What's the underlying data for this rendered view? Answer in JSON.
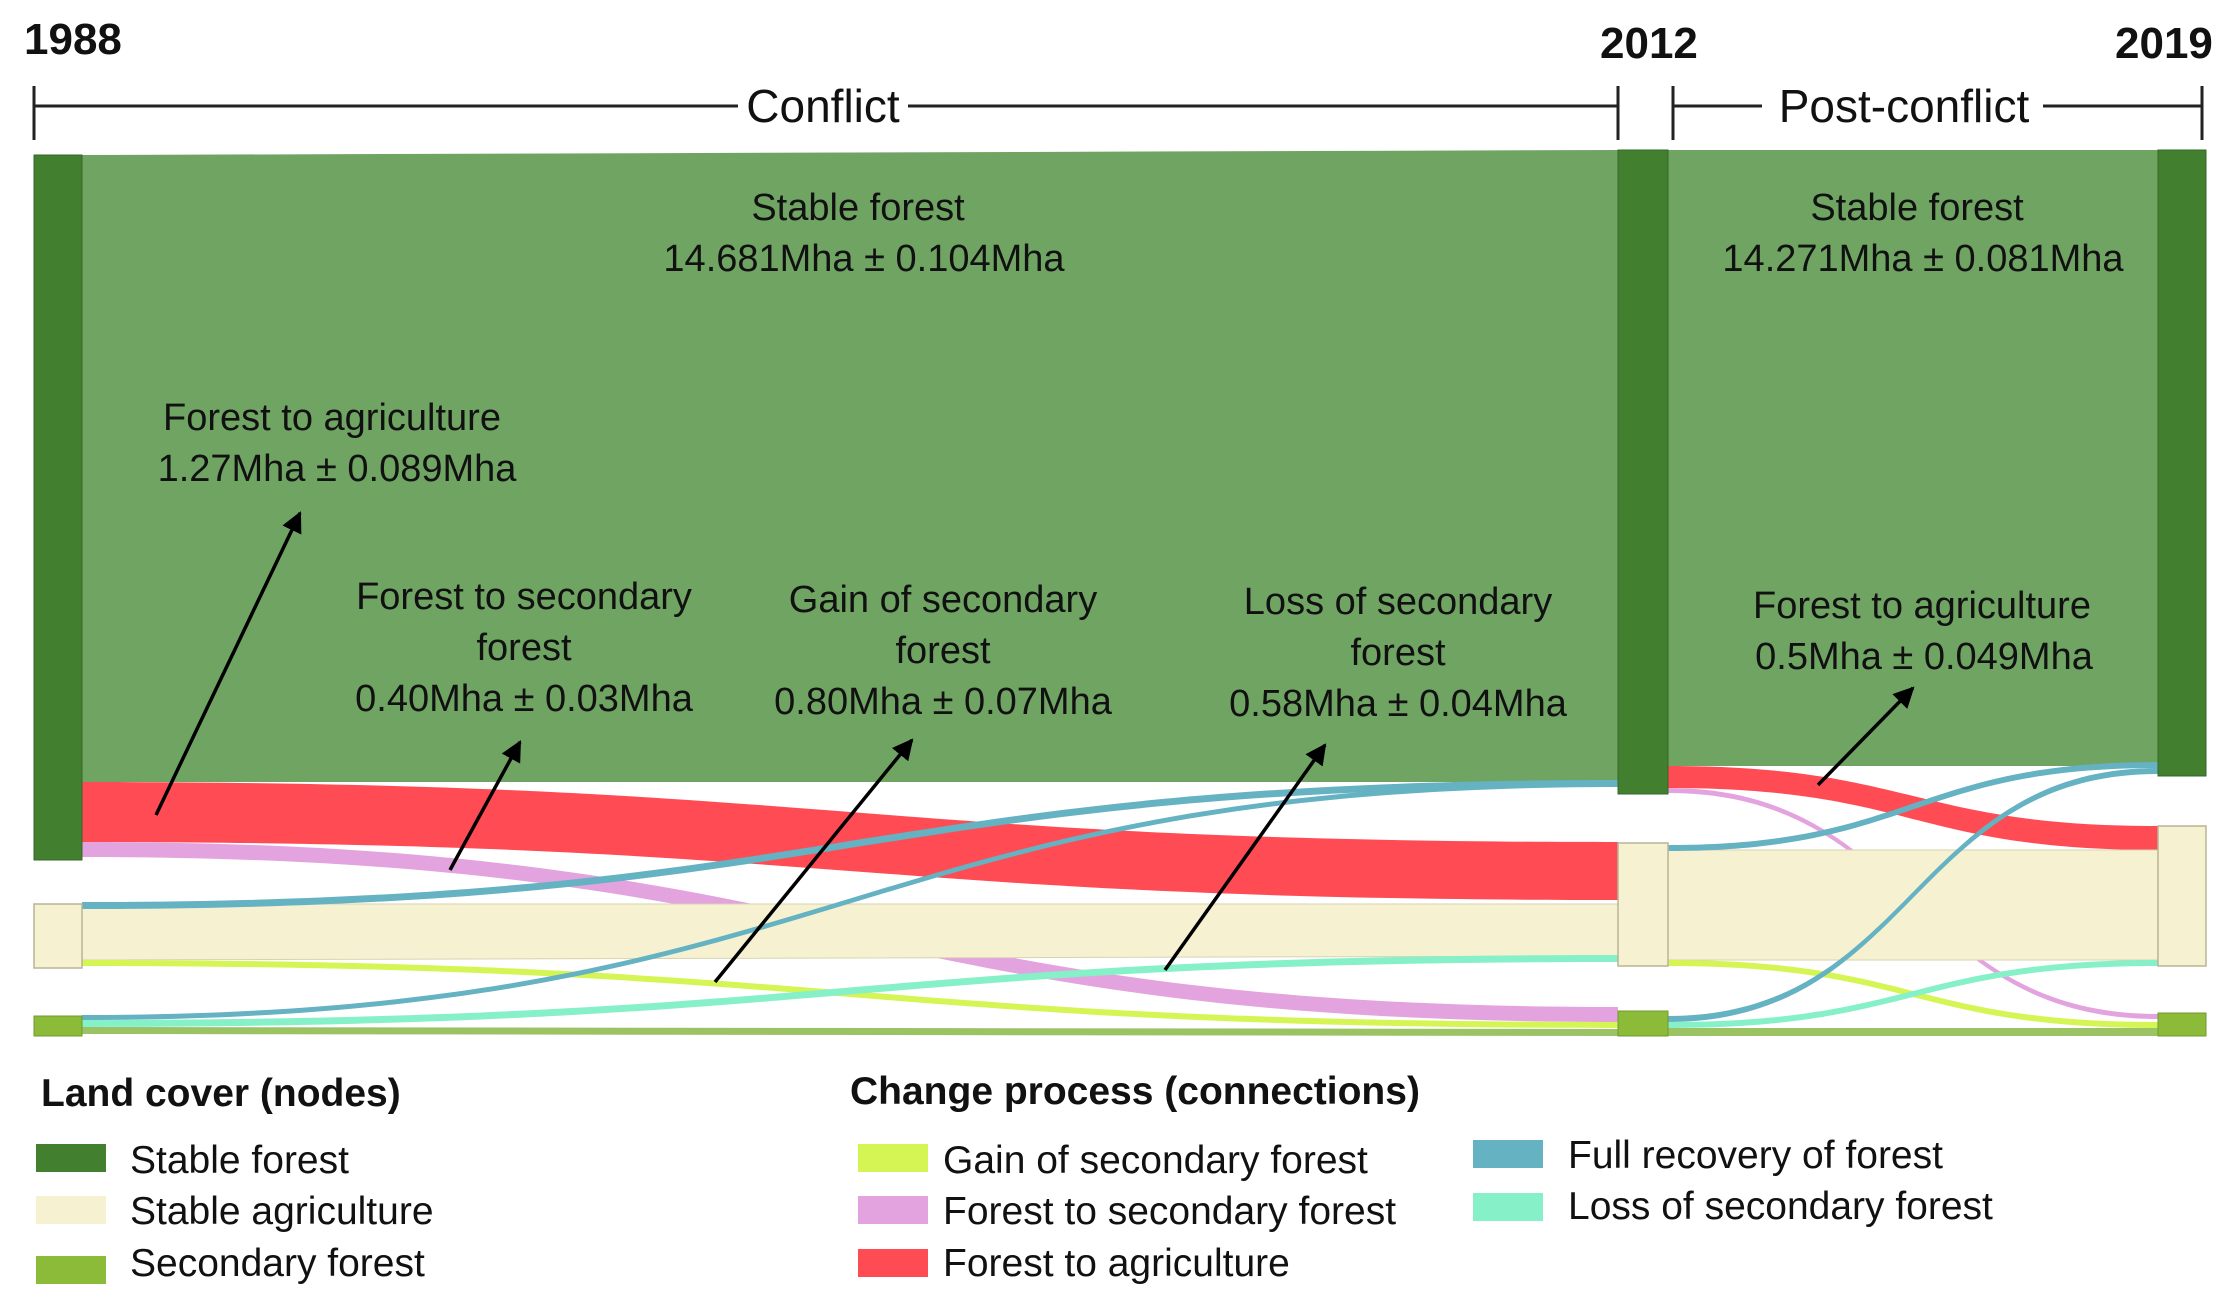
{
  "timeline": {
    "years": [
      "1988",
      "2012",
      "2019"
    ],
    "periods": [
      "Conflict",
      "Post-conflict"
    ]
  },
  "colors": {
    "stable_forest_node": "#427f2f",
    "stable_forest_flow": "#6fa463",
    "stable_agriculture": "#f6f1d1",
    "secondary_forest": "#8cbb3a",
    "gain_secondary": "#d4f553",
    "forest_to_secondary": "#e3a3df",
    "forest_to_agriculture": "#ff4b54",
    "full_recovery": "#64b2c2",
    "loss_secondary": "#86f0c9"
  },
  "labels": {
    "c_stable": {
      "title": "Stable forest",
      "value": "14.681Mha ± 0.104Mha"
    },
    "c_f2a": {
      "title": "Forest to agriculture",
      "value": "1.27Mha ± 0.089Mha"
    },
    "c_f2s": {
      "title1": "Forest to secondary",
      "title2": "forest",
      "value": "0.40Mha ± 0.03Mha"
    },
    "c_gain": {
      "title1": "Gain of secondary",
      "title2": "forest",
      "value": "0.80Mha ± 0.07Mha"
    },
    "c_loss": {
      "title1": "Loss of secondary",
      "title2": "forest",
      "value": "0.58Mha ± 0.04Mha"
    },
    "p_stable": {
      "title": "Stable forest",
      "value": "14.271Mha ± 0.081Mha"
    },
    "p_f2a": {
      "title": "Forest to agriculture",
      "value": "0.5Mha ± 0.049Mha"
    }
  },
  "legend": {
    "nodes_title": "Land cover (nodes)",
    "nodes": [
      "Stable forest",
      "Stable agriculture",
      "Secondary forest"
    ],
    "connections_title": "Change process (connections)",
    "connections": [
      "Gain of secondary forest",
      "Forest to secondary forest",
      "Forest to agriculture",
      "Full recovery of forest",
      "Loss of secondary forest"
    ]
  }
}
